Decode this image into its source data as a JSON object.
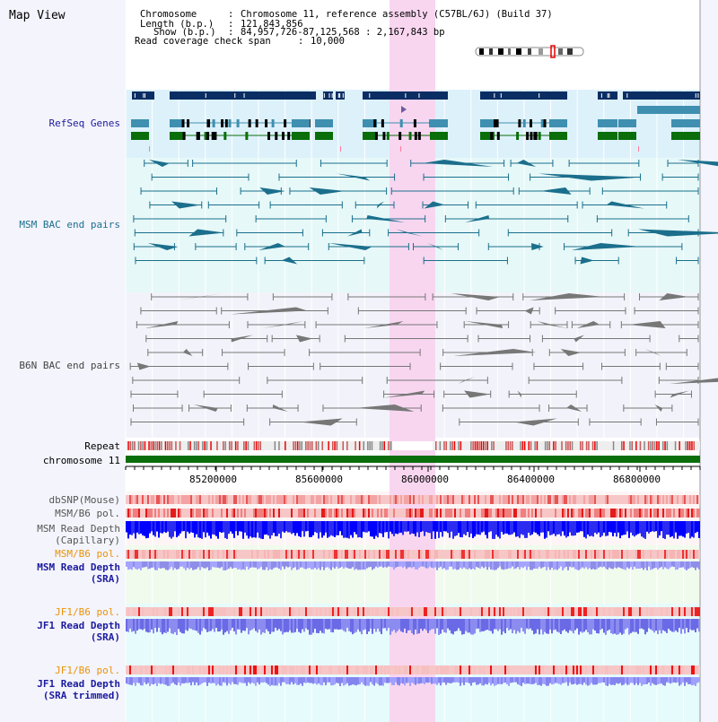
{
  "view": {
    "title": "Map View"
  },
  "info": {
    "chromosome_label": "Chromosome",
    "chromosome_value": "Chromosome 11, reference assembly (C57BL/6J) (Build 37)",
    "length_label": "Length (b.p.)",
    "length_value": "121,843,856",
    "show_label": "Show (b.p.)",
    "show_value": "84,957,726-87,125,568 : 2,167,843 bp",
    "span_label": "Read coverage check span",
    "span_value": "10,000"
  },
  "tracks": {
    "refseq": "RefSeq Genes",
    "msm_bac": "MSM BAC end pairs",
    "b6n_bac": "B6N BAC end pairs",
    "repeat": "Repeat",
    "chromosome": "chromosome 11",
    "dbsnp": "dbSNP(Mouse)",
    "msm_b6_pol_1": "MSM/B6 pol.",
    "msm_depth_cap_1": "MSM Read Depth",
    "msm_depth_cap_2": "(Capillary)",
    "msm_b6_pol_2": "MSM/B6 pol.",
    "msm_depth_sra_1": "MSM Read Depth",
    "msm_depth_sra_2": "(SRA)",
    "jf1_b6_pol_1": "JF1/B6 pol.",
    "jf1_depth_sra_1": "JF1 Read Depth",
    "jf1_depth_sra_2": "(SRA)",
    "jf1_b6_pol_2": "JF1/B6 pol.",
    "jf1_depth_trim_1": "JF1 Read Depth",
    "jf1_depth_trim_2": "(SRA trimmed)"
  },
  "ruler": {
    "ticks": [
      "85200000",
      "85600000",
      "86000000",
      "86400000",
      "86800000"
    ]
  },
  "colors": {
    "navy_label": "#1b1b9e",
    "orange_label": "#e8930a",
    "highlight": "#f8d6f0",
    "gene_dark": "#0a2d63",
    "gene_teal": "#3e8fb0",
    "gene_green": "#0a6e0a",
    "msm_bac": "#1b6f8c",
    "b6n_bac": "#777777"
  }
}
